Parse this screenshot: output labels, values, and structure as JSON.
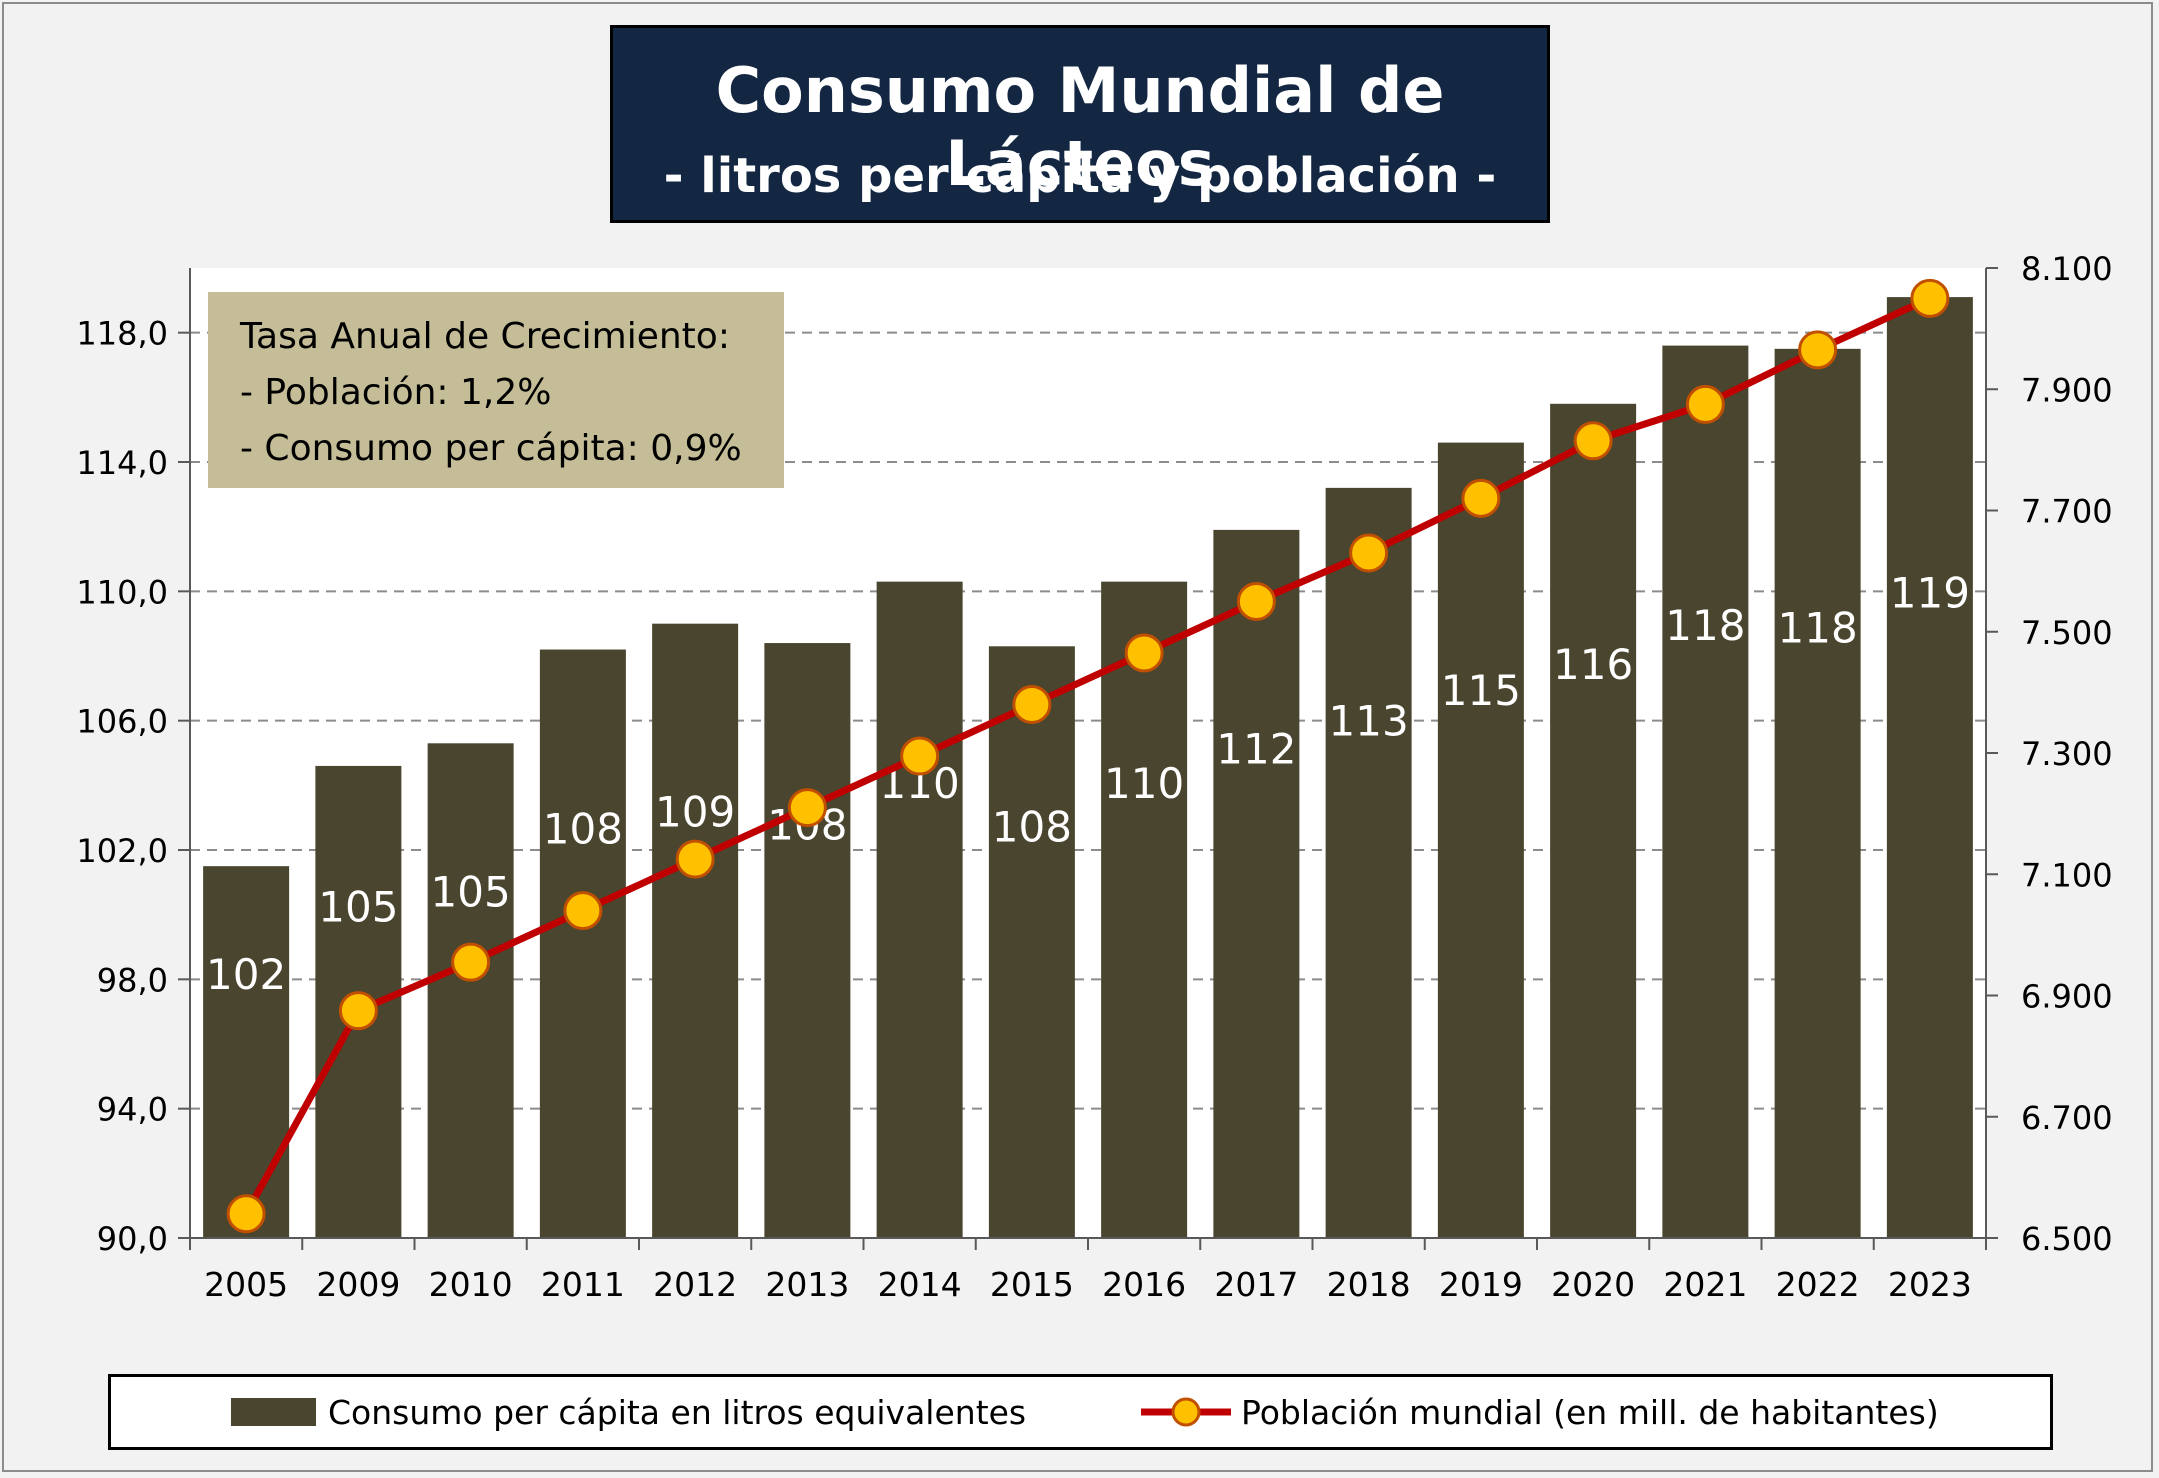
{
  "header": {
    "title": "Consumo Mundial de Lácteos",
    "subtitle": "- litros per cápita y población -"
  },
  "annotation": {
    "line1": "Tasa Anual de Crecimiento:",
    "line2": "- Población: 1,2%",
    "line3": "- Consumo per cápita: 0,9%"
  },
  "legend": {
    "bar_label": "Consumo per cápita en litros equivalentes",
    "line_label": "Población mundial (en mill. de habitantes)"
  },
  "colors": {
    "bar": "#4a452e",
    "line": "#c00000",
    "marker_fill": "#ffc000",
    "marker_stroke": "#c05000",
    "annotation_bg": "#c4bd97",
    "title_bg": "#132742"
  },
  "chart_data": {
    "type": "bar",
    "categories": [
      "2005",
      "2009",
      "2010",
      "2011",
      "2012",
      "2013",
      "2014",
      "2015",
      "2016",
      "2017",
      "2018",
      "2019",
      "2020",
      "2021",
      "2022",
      "2023"
    ],
    "series": [
      {
        "name": "Consumo per cápita en litros equivalentes",
        "type": "bar",
        "axis": "left",
        "values": [
          101.5,
          104.6,
          105.3,
          108.2,
          109.0,
          108.4,
          110.3,
          108.3,
          110.3,
          111.9,
          113.2,
          114.6,
          115.8,
          117.6,
          117.5,
          119.1
        ],
        "data_labels": [
          "102",
          "105",
          "105",
          "108",
          "109",
          "108",
          "110",
          "108",
          "110",
          "112",
          "113",
          "115",
          "116",
          "118",
          "118",
          "119"
        ]
      },
      {
        "name": "Población mundial (en mill. de habitantes)",
        "type": "line",
        "axis": "right",
        "values": [
          6540,
          6875,
          6955,
          7040,
          7125,
          7210,
          7295,
          7380,
          7465,
          7550,
          7630,
          7720,
          7815,
          7875,
          7965,
          8050
        ]
      }
    ],
    "y_left": {
      "min": 90,
      "max": 120,
      "ticks": [
        "90,0",
        "94,0",
        "98,0",
        "102,0",
        "106,0",
        "110,0",
        "114,0",
        "118,0"
      ],
      "tick_values": [
        90,
        94,
        98,
        102,
        106,
        110,
        114,
        118
      ]
    },
    "y_right": {
      "min": 6500,
      "max": 8100,
      "ticks": [
        "6.500",
        "6.700",
        "6.900",
        "7.100",
        "7.300",
        "7.500",
        "7.700",
        "7.900",
        "8.100"
      ],
      "tick_values": [
        6500,
        6700,
        6900,
        7100,
        7300,
        7500,
        7700,
        7900,
        8100
      ]
    },
    "grid": "horizontal-dashed",
    "legend_position": "bottom"
  }
}
